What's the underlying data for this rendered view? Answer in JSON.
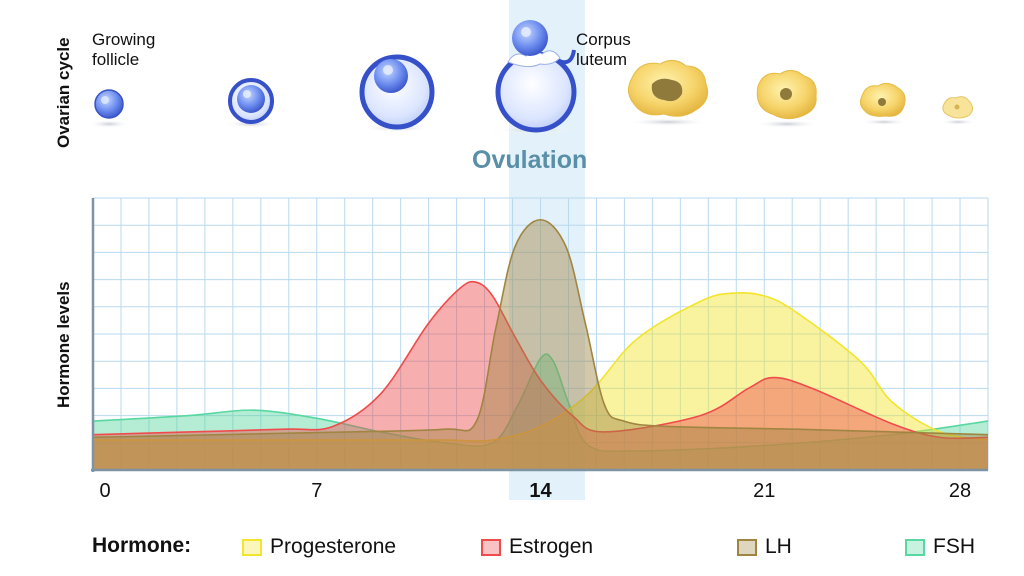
{
  "labels": {
    "ovarian_cycle": "Ovarian cycle",
    "hormone_levels": "Hormone levels",
    "growing_follicle_1": "Growing",
    "growing_follicle_2": "follicle",
    "corpus_luteum_1": "Corpus",
    "corpus_luteum_2": "luteum",
    "ovulation": "Ovulation"
  },
  "chart_data": {
    "type": "area",
    "title": "",
    "xlabel": "",
    "ylabel": "Hormone levels",
    "xlim": [
      0,
      28
    ],
    "ylim": [
      0,
      100
    ],
    "grid": true,
    "ticks": [
      {
        "value": 0,
        "label": "0",
        "bold": false
      },
      {
        "value": 7,
        "label": "7",
        "bold": false
      },
      {
        "value": 14,
        "label": "14",
        "bold": true
      },
      {
        "value": 21,
        "label": "21",
        "bold": false
      },
      {
        "value": 28,
        "label": "28",
        "bold": false
      }
    ],
    "ovulation_band": [
      13,
      15.4
    ],
    "series": [
      {
        "name": "FSH",
        "color": "#58d8a0",
        "x": [
          0,
          3,
          5,
          7,
          9,
          11,
          12.5,
          13.3,
          14,
          14.4,
          14.9,
          15.5,
          17,
          21,
          25,
          28
        ],
        "y": [
          18,
          20,
          22,
          19,
          14,
          10,
          10,
          24,
          41,
          40,
          24,
          9,
          7,
          9,
          13,
          18
        ]
      },
      {
        "name": "Progesterone",
        "color": "#f2e52c",
        "x": [
          0,
          4,
          8,
          11,
          12.5,
          14,
          15.5,
          17,
          19,
          20,
          21,
          22,
          24,
          25,
          26.5,
          28
        ],
        "y": [
          11,
          11,
          11,
          11,
          11,
          16,
          28,
          48,
          62,
          65,
          64,
          58,
          40,
          25,
          14,
          11
        ]
      },
      {
        "name": "Estrogen",
        "color": "#ee4c4c",
        "x": [
          0,
          3,
          6,
          7.5,
          9,
          10.5,
          11.5,
          12,
          12.5,
          13.2,
          14,
          15,
          16,
          19,
          20.5,
          21.3,
          22.5,
          25,
          26.5,
          28
        ],
        "y": [
          13,
          14,
          15,
          16,
          28,
          54,
          67,
          69,
          64,
          49,
          33,
          20,
          14,
          20,
          30,
          34,
          30,
          17,
          12,
          12
        ]
      },
      {
        "name": "LH",
        "color": "#a08542",
        "x": [
          0,
          4,
          8,
          11,
          12,
          12.6,
          13.2,
          14,
          14.8,
          15.4,
          16,
          16.6,
          18,
          22,
          25,
          28
        ],
        "y": [
          12,
          13,
          14,
          15,
          18,
          52,
          82,
          92,
          82,
          54,
          24,
          18,
          16,
          15,
          14,
          13
        ]
      }
    ]
  },
  "legend": {
    "title": "Hormone:",
    "items": [
      {
        "label": "Progesterone",
        "color": "#f2e52c"
      },
      {
        "label": "Estrogen",
        "color": "#ee4c4c"
      },
      {
        "label": "LH",
        "color": "#a08542"
      },
      {
        "label": "FSH",
        "color": "#58d8a0"
      }
    ]
  }
}
